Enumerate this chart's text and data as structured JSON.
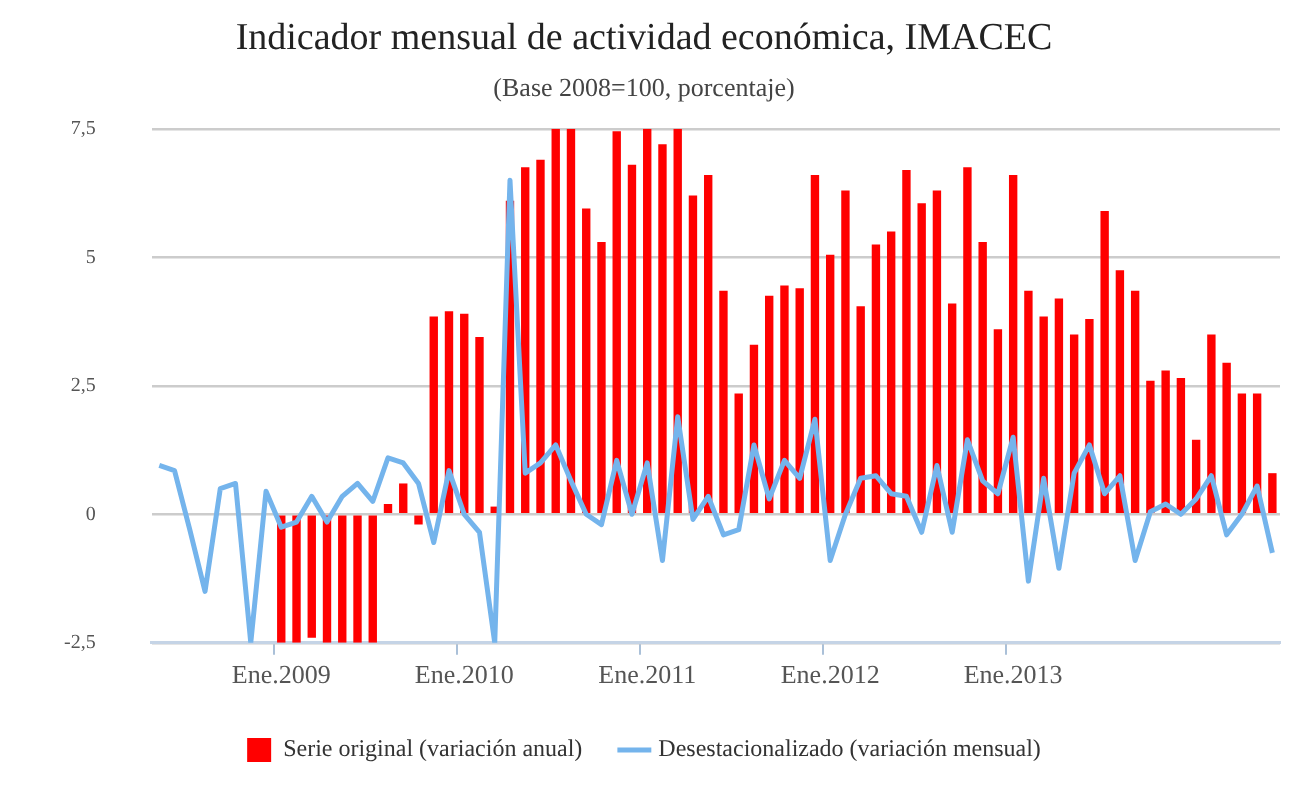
{
  "chart_data": {
    "type": "bar",
    "title": "Indicador mensual de actividad económica, IMACEC",
    "subtitle": "(Base 2008=100, porcentaje)",
    "categories": [
      null,
      null,
      null,
      null,
      null,
      null,
      null,
      null,
      "Ene.2009",
      null,
      null,
      null,
      null,
      null,
      null,
      null,
      null,
      null,
      null,
      null,
      "Ene.2010",
      null,
      null,
      null,
      null,
      null,
      null,
      null,
      null,
      null,
      null,
      null,
      "Ene.2011",
      null,
      null,
      null,
      null,
      null,
      null,
      null,
      null,
      null,
      null,
      null,
      "Ene.2012",
      null,
      null,
      null,
      null,
      null,
      null,
      null,
      null,
      null,
      null,
      null,
      "Ene.2013",
      null,
      null,
      null,
      null,
      null,
      null,
      null,
      null,
      null,
      null,
      null,
      null,
      null,
      null,
      null,
      null,
      null
    ],
    "series": [
      {
        "name": "Serie original (variación anual)",
        "type": "bar",
        "color": "#ff0000",
        "values": [
          null,
          null,
          null,
          null,
          null,
          null,
          null,
          null,
          -2.5,
          -2.5,
          -2.4,
          -2.5,
          -2.5,
          -2.5,
          -2.5,
          0.2,
          0.6,
          -0.2,
          3.85,
          3.95,
          3.9,
          3.45,
          0.15,
          6.1,
          6.75,
          6.9,
          7.5,
          7.5,
          5.95,
          5.3,
          7.45,
          6.8,
          7.5,
          7.2,
          7.5,
          6.2,
          6.6,
          4.35,
          2.35,
          3.3,
          4.25,
          4.45,
          4.4,
          6.6,
          5.05,
          6.3,
          4.05,
          5.25,
          5.5,
          6.7,
          6.05,
          6.3,
          4.1,
          6.75,
          5.3,
          3.6,
          6.6,
          4.35,
          3.85,
          4.2,
          3.5,
          3.8,
          5.9,
          4.75,
          4.35,
          2.6,
          2.8,
          2.65,
          1.45,
          3.5,
          2.95,
          2.35,
          2.35,
          0.8
        ]
      },
      {
        "name": "Desestacionalizado (variación mensual)",
        "type": "line",
        "color": "#74b4ec",
        "values": [
          0.95,
          0.85,
          -0.3,
          -1.5,
          0.5,
          0.6,
          -2.5,
          0.45,
          -0.25,
          -0.15,
          0.35,
          -0.15,
          0.35,
          0.6,
          0.25,
          1.1,
          1.0,
          0.6,
          -0.55,
          0.85,
          0,
          -0.35,
          -2.5,
          6.5,
          0.8,
          1.0,
          1.35,
          0.65,
          0,
          -0.2,
          1.05,
          0,
          1.0,
          -0.9,
          1.9,
          -0.1,
          0.35,
          -0.4,
          -0.3,
          1.35,
          0.3,
          1.05,
          0.7,
          1.85,
          -0.9,
          0,
          0.7,
          0.75,
          0.4,
          0.35,
          -0.35,
          0.95,
          -0.35,
          1.45,
          0.65,
          0.4,
          1.5,
          -1.3,
          0.7,
          -1.05,
          0.8,
          1.35,
          0.4,
          0.75,
          -0.9,
          0.05,
          0.2,
          0,
          0.3,
          0.75,
          -0.4,
          0,
          0.55,
          -0.75
        ]
      }
    ],
    "ylim": [
      -2.5,
      7.5
    ],
    "yticks": [
      {
        "value": -2.5,
        "label": "-2,5"
      },
      {
        "value": 0,
        "label": "0"
      },
      {
        "value": 2.5,
        "label": "2,5"
      },
      {
        "value": 5,
        "label": "5"
      },
      {
        "value": 7.5,
        "label": "7,5"
      }
    ],
    "grid": "y",
    "legend": "bottom",
    "marker": "none",
    "line_style": "solid"
  }
}
